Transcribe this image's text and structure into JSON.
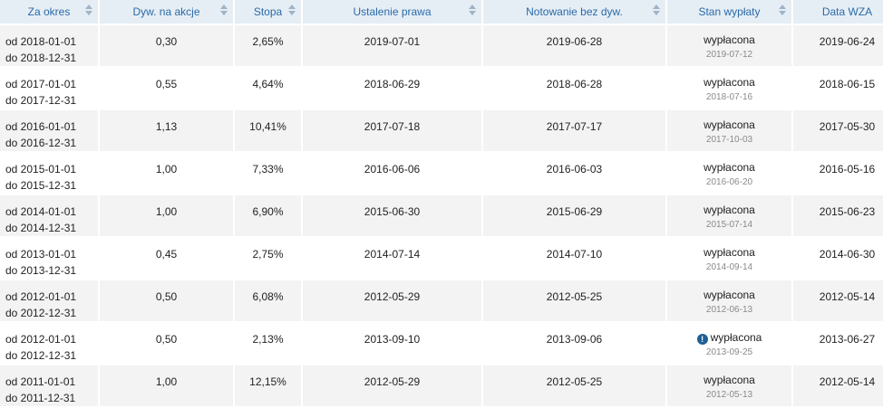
{
  "columns": [
    {
      "label": "Za okres"
    },
    {
      "label": "Dyw. na akcje"
    },
    {
      "label": "Stopa"
    },
    {
      "label": "Ustalenie prawa"
    },
    {
      "label": "Notowanie bez dyw."
    },
    {
      "label": "Stan wypłaty"
    },
    {
      "label": "Data WZA"
    }
  ],
  "rows": [
    {
      "od": "od 2018-01-01",
      "do": "do 2018-12-31",
      "dyw": "0,30",
      "stopa": "2,65%",
      "ustalenie": "2019-07-01",
      "notowanie": "2019-06-28",
      "stan": "wypłacona",
      "stan_data": "2019-07-12",
      "wza": "2019-06-24",
      "warn": false
    },
    {
      "od": "od 2017-01-01",
      "do": "do 2017-12-31",
      "dyw": "0,55",
      "stopa": "4,64%",
      "ustalenie": "2018-06-29",
      "notowanie": "2018-06-28",
      "stan": "wypłacona",
      "stan_data": "2018-07-16",
      "wza": "2018-06-15",
      "warn": false
    },
    {
      "od": "od 2016-01-01",
      "do": "do 2016-12-31",
      "dyw": "1,13",
      "stopa": "10,41%",
      "ustalenie": "2017-07-18",
      "notowanie": "2017-07-17",
      "stan": "wypłacona",
      "stan_data": "2017-10-03",
      "wza": "2017-05-30",
      "warn": false
    },
    {
      "od": "od 2015-01-01",
      "do": "do 2015-12-31",
      "dyw": "1,00",
      "stopa": "7,33%",
      "ustalenie": "2016-06-06",
      "notowanie": "2016-06-03",
      "stan": "wypłacona",
      "stan_data": "2016-06-20",
      "wza": "2016-05-16",
      "warn": false
    },
    {
      "od": "od 2014-01-01",
      "do": "do 2014-12-31",
      "dyw": "1,00",
      "stopa": "6,90%",
      "ustalenie": "2015-06-30",
      "notowanie": "2015-06-29",
      "stan": "wypłacona",
      "stan_data": "2015-07-14",
      "wza": "2015-06-23",
      "warn": false
    },
    {
      "od": "od 2013-01-01",
      "do": "do 2013-12-31",
      "dyw": "0,45",
      "stopa": "2,75%",
      "ustalenie": "2014-07-14",
      "notowanie": "2014-07-10",
      "stan": "wypłacona",
      "stan_data": "2014-09-14",
      "wza": "2014-06-30",
      "warn": false
    },
    {
      "od": "od 2012-01-01",
      "do": "do 2012-12-31",
      "dyw": "0,50",
      "stopa": "6,08%",
      "ustalenie": "2012-05-29",
      "notowanie": "2012-05-25",
      "stan": "wypłacona",
      "stan_data": "2012-06-13",
      "wza": "2012-05-14",
      "warn": false
    },
    {
      "od": "od 2012-01-01",
      "do": "do 2012-12-31",
      "dyw": "0,50",
      "stopa": "2,13%",
      "ustalenie": "2013-09-10",
      "notowanie": "2013-09-06",
      "stan": "wypłacona",
      "stan_data": "2013-09-25",
      "wza": "2013-06-27",
      "warn": true,
      "warn_icon": "exclamation-circle-icon",
      "warn_glyph": "!"
    },
    {
      "od": "od 2011-01-01",
      "do": "do 2011-12-31",
      "dyw": "1,00",
      "stopa": "12,15%",
      "ustalenie": "2012-05-29",
      "notowanie": "2012-05-25",
      "stan": "wypłacona",
      "stan_data": "2012-05-13",
      "wza": "2012-05-14",
      "warn": false
    }
  ],
  "colors": {
    "header_bg": "#e6eef5",
    "header_text": "#2a6aa8",
    "row_alt_bg": "#f3f3f3",
    "row_bg": "#ffffff",
    "warn_icon": "#1e5f96"
  }
}
